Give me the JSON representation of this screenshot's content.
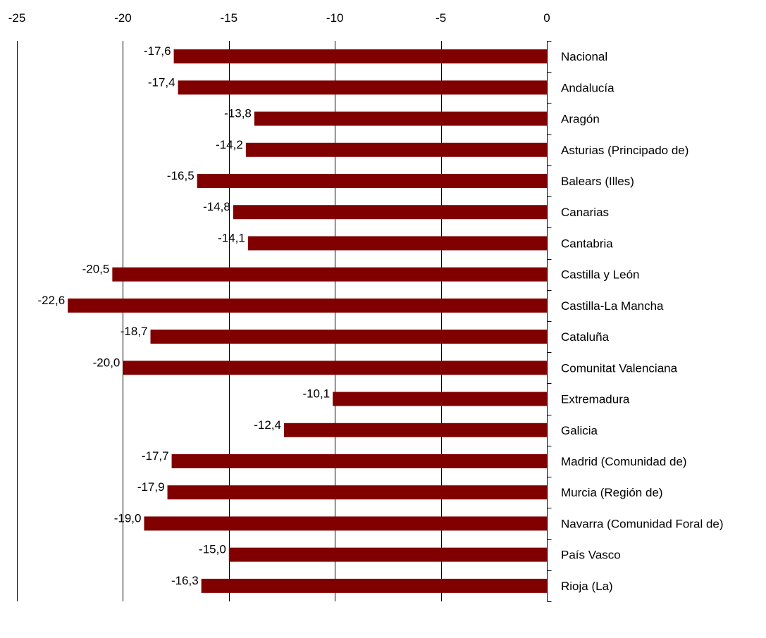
{
  "chart_data": {
    "type": "bar",
    "orientation": "horizontal",
    "categories": [
      "Nacional",
      "Andalucía",
      "Aragón",
      "Asturias (Principado de)",
      "Balears (Illes)",
      "Canarias",
      "Cantabria",
      "Castilla y León",
      "Castilla-La Mancha",
      "Cataluña",
      "Comunitat Valenciana",
      "Extremadura",
      "Galicia",
      "Madrid (Comunidad de)",
      "Murcia (Región de)",
      "Navarra (Comunidad Foral de)",
      "País Vasco",
      "Rioja (La)"
    ],
    "values": [
      -17.6,
      -17.4,
      -13.8,
      -14.2,
      -16.5,
      -14.8,
      -14.1,
      -20.5,
      -22.6,
      -18.7,
      -20.0,
      -10.1,
      -12.4,
      -17.7,
      -17.9,
      -19.0,
      -15.0,
      -16.3
    ],
    "value_labels": [
      "-17,6",
      "-17,4",
      "-13,8",
      "-14,2",
      "-16,5",
      "-14,8",
      "-14,1",
      "-20,5",
      "-22,6",
      "-18,7",
      "-20,0",
      "-10,1",
      "-12,4",
      "-17,7",
      "-17,9",
      "-19,0",
      "-15,0",
      "-16,3"
    ],
    "xlim": [
      -25,
      0
    ],
    "x_ticks": [
      -25,
      -20,
      -15,
      -10,
      -5,
      0
    ],
    "x_tick_labels": [
      "-25",
      "-20",
      "-15",
      "-10",
      "-5",
      "0"
    ],
    "x_axis_position": "top",
    "category_labels_side": "right",
    "grid": true,
    "bar_color": "#800000",
    "title": "",
    "xlabel": "",
    "ylabel": ""
  }
}
